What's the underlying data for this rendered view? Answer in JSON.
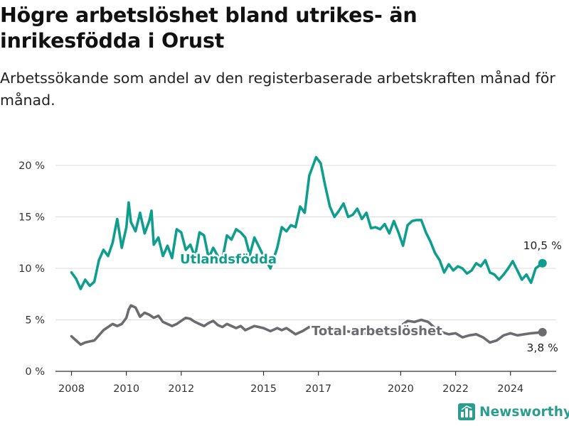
{
  "title": "Högre arbetslöshet bland utrikes- än inrikesfödda i Orust",
  "subtitle": "Arbetssökande som andel av den registerbaserade arbetskraften månad för månad.",
  "brand": {
    "name": "Newsworthy",
    "icon": "bar-chart-logo-icon"
  },
  "colors": {
    "utlandsfodda": "#0f9e8e",
    "total": "#6b6b70",
    "grid": "#dcdcdc",
    "axis": "#333333"
  },
  "chart_data": {
    "type": "line",
    "ylim": [
      0,
      20
    ],
    "yticks": [
      0,
      5,
      10,
      15,
      20
    ],
    "ytick_labels": [
      "0 %",
      "5 %",
      "10 %",
      "15 %",
      "20 %"
    ],
    "xlim": [
      "2007-06",
      "2025-09"
    ],
    "xticks": [
      "2008",
      "2010",
      "2012",
      "2015",
      "2017",
      "2020",
      "2022",
      "2024"
    ],
    "series": [
      {
        "name": "Utlandsfödda",
        "color": "#0f9e8e",
        "end_label": "10,5 %",
        "points": [
          [
            "2008-01",
            9.6
          ],
          [
            "2008-03",
            9.0
          ],
          [
            "2008-05",
            8.0
          ],
          [
            "2008-07",
            8.9
          ],
          [
            "2008-09",
            8.3
          ],
          [
            "2008-11",
            8.7
          ],
          [
            "2009-01",
            10.8
          ],
          [
            "2009-03",
            11.8
          ],
          [
            "2009-05",
            11.2
          ],
          [
            "2009-07",
            12.5
          ],
          [
            "2009-09",
            14.8
          ],
          [
            "2009-11",
            12.0
          ],
          [
            "2010-01",
            14.0
          ],
          [
            "2010-02",
            16.4
          ],
          [
            "2010-03",
            14.5
          ],
          [
            "2010-05",
            13.6
          ],
          [
            "2010-07",
            15.4
          ],
          [
            "2010-09",
            13.4
          ],
          [
            "2010-11",
            14.6
          ],
          [
            "2010-12",
            15.6
          ],
          [
            "2011-01",
            12.3
          ],
          [
            "2011-03",
            13.0
          ],
          [
            "2011-05",
            11.2
          ],
          [
            "2011-07",
            12.2
          ],
          [
            "2011-09",
            11.0
          ],
          [
            "2011-11",
            13.8
          ],
          [
            "2012-01",
            13.5
          ],
          [
            "2012-03",
            11.8
          ],
          [
            "2012-05",
            12.3
          ],
          [
            "2012-07",
            11.1
          ],
          [
            "2012-09",
            13.5
          ],
          [
            "2012-11",
            13.2
          ],
          [
            "2013-01",
            11.0
          ],
          [
            "2013-03",
            12.0
          ],
          [
            "2013-05",
            11.2
          ],
          [
            "2013-07",
            10.9
          ],
          [
            "2013-09",
            13.2
          ],
          [
            "2013-11",
            12.8
          ],
          [
            "2014-01",
            13.8
          ],
          [
            "2014-03",
            13.5
          ],
          [
            "2014-05",
            13.0
          ],
          [
            "2014-07",
            11.3
          ],
          [
            "2014-09",
            13.0
          ],
          [
            "2015-01",
            11.2
          ],
          [
            "2015-04",
            10.0
          ],
          [
            "2015-07",
            12.0
          ],
          [
            "2015-09",
            14.0
          ],
          [
            "2015-11",
            13.6
          ],
          [
            "2016-01",
            14.2
          ],
          [
            "2016-03",
            14.0
          ],
          [
            "2016-05",
            16.0
          ],
          [
            "2016-07",
            15.4
          ],
          [
            "2016-09",
            19.0
          ],
          [
            "2016-12",
            20.8
          ],
          [
            "2017-02",
            20.2
          ],
          [
            "2017-04",
            18.0
          ],
          [
            "2017-06",
            16.0
          ],
          [
            "2017-08",
            15.0
          ],
          [
            "2017-10",
            15.6
          ],
          [
            "2017-12",
            16.3
          ],
          [
            "2018-02",
            15.0
          ],
          [
            "2018-04",
            15.2
          ],
          [
            "2018-06",
            15.8
          ],
          [
            "2018-08",
            14.8
          ],
          [
            "2018-10",
            15.4
          ],
          [
            "2018-12",
            13.9
          ],
          [
            "2019-02",
            14.0
          ],
          [
            "2019-04",
            13.8
          ],
          [
            "2019-06",
            14.3
          ],
          [
            "2019-08",
            13.4
          ],
          [
            "2019-10",
            14.6
          ],
          [
            "2019-12",
            13.5
          ],
          [
            "2020-02",
            12.2
          ],
          [
            "2020-04",
            14.2
          ],
          [
            "2020-06",
            14.6
          ],
          [
            "2020-08",
            14.7
          ],
          [
            "2020-10",
            14.7
          ],
          [
            "2020-12",
            13.5
          ],
          [
            "2021-02",
            12.6
          ],
          [
            "2021-04",
            11.5
          ],
          [
            "2021-06",
            10.8
          ],
          [
            "2021-08",
            9.6
          ],
          [
            "2021-10",
            10.4
          ],
          [
            "2021-12",
            9.8
          ],
          [
            "2022-02",
            10.2
          ],
          [
            "2022-04",
            10.0
          ],
          [
            "2022-06",
            9.5
          ],
          [
            "2022-08",
            9.8
          ],
          [
            "2022-10",
            10.5
          ],
          [
            "2022-12",
            10.2
          ],
          [
            "2023-02",
            10.8
          ],
          [
            "2023-04",
            9.6
          ],
          [
            "2023-06",
            9.4
          ],
          [
            "2023-08",
            8.9
          ],
          [
            "2023-10",
            9.4
          ],
          [
            "2023-12",
            10.0
          ],
          [
            "2024-02",
            10.7
          ],
          [
            "2024-04",
            9.8
          ],
          [
            "2024-06",
            8.9
          ],
          [
            "2024-08",
            9.4
          ],
          [
            "2024-10",
            8.6
          ],
          [
            "2024-12",
            10.0
          ],
          [
            "2025-03",
            10.5
          ]
        ]
      },
      {
        "name": "Total arbetslöshet",
        "color": "#6b6b70",
        "end_label": "3,8 %",
        "points": [
          [
            "2008-01",
            3.4
          ],
          [
            "2008-03",
            3.0
          ],
          [
            "2008-05",
            2.6
          ],
          [
            "2008-07",
            2.8
          ],
          [
            "2008-09",
            2.9
          ],
          [
            "2008-11",
            3.0
          ],
          [
            "2009-01",
            3.5
          ],
          [
            "2009-03",
            4.0
          ],
          [
            "2009-05",
            4.3
          ],
          [
            "2009-07",
            4.6
          ],
          [
            "2009-09",
            4.4
          ],
          [
            "2009-11",
            4.6
          ],
          [
            "2010-01",
            5.2
          ],
          [
            "2010-02",
            6.0
          ],
          [
            "2010-03",
            6.4
          ],
          [
            "2010-05",
            6.2
          ],
          [
            "2010-07",
            5.3
          ],
          [
            "2010-09",
            5.7
          ],
          [
            "2010-11",
            5.5
          ],
          [
            "2011-01",
            5.2
          ],
          [
            "2011-03",
            5.4
          ],
          [
            "2011-05",
            4.8
          ],
          [
            "2011-07",
            4.6
          ],
          [
            "2011-09",
            4.4
          ],
          [
            "2011-11",
            4.6
          ],
          [
            "2012-01",
            4.9
          ],
          [
            "2012-03",
            5.2
          ],
          [
            "2012-05",
            5.1
          ],
          [
            "2012-07",
            4.8
          ],
          [
            "2012-09",
            4.6
          ],
          [
            "2012-11",
            4.4
          ],
          [
            "2013-01",
            4.7
          ],
          [
            "2013-03",
            4.9
          ],
          [
            "2013-05",
            4.5
          ],
          [
            "2013-07",
            4.3
          ],
          [
            "2013-09",
            4.6
          ],
          [
            "2013-11",
            4.4
          ],
          [
            "2014-01",
            4.2
          ],
          [
            "2014-03",
            4.4
          ],
          [
            "2014-05",
            4.0
          ],
          [
            "2014-07",
            4.2
          ],
          [
            "2014-09",
            4.4
          ],
          [
            "2014-11",
            4.3
          ],
          [
            "2015-01",
            4.2
          ],
          [
            "2015-04",
            3.9
          ],
          [
            "2015-07",
            4.2
          ],
          [
            "2015-09",
            4.0
          ],
          [
            "2015-11",
            4.2
          ],
          [
            "2016-01",
            3.9
          ],
          [
            "2016-03",
            3.6
          ],
          [
            "2016-06",
            3.9
          ],
          [
            "2016-09",
            4.3
          ],
          [
            "2016-12",
            4.2
          ],
          [
            "2017-03",
            3.9
          ],
          [
            "2017-06",
            3.7
          ],
          [
            "2017-09",
            3.8
          ],
          [
            "2018-01",
            3.9
          ],
          [
            "2018-04",
            3.8
          ],
          [
            "2018-07",
            3.6
          ],
          [
            "2018-10",
            3.7
          ],
          [
            "2019-01",
            3.9
          ],
          [
            "2019-04",
            3.8
          ],
          [
            "2019-07",
            4.1
          ],
          [
            "2019-10",
            4.0
          ],
          [
            "2020-01",
            4.4
          ],
          [
            "2020-04",
            4.9
          ],
          [
            "2020-07",
            4.8
          ],
          [
            "2020-10",
            5.0
          ],
          [
            "2021-01",
            4.8
          ],
          [
            "2021-04",
            4.2
          ],
          [
            "2021-07",
            3.8
          ],
          [
            "2021-10",
            3.6
          ],
          [
            "2022-01",
            3.7
          ],
          [
            "2022-04",
            3.3
          ],
          [
            "2022-07",
            3.5
          ],
          [
            "2022-10",
            3.6
          ],
          [
            "2023-01",
            3.3
          ],
          [
            "2023-04",
            2.8
          ],
          [
            "2023-07",
            3.0
          ],
          [
            "2023-10",
            3.5
          ],
          [
            "2024-01",
            3.7
          ],
          [
            "2024-04",
            3.5
          ],
          [
            "2024-07",
            3.6
          ],
          [
            "2024-10",
            3.7
          ],
          [
            "2025-03",
            3.8
          ]
        ]
      }
    ],
    "annotations": [
      {
        "text": "Utlandsfödda",
        "series": 0
      },
      {
        "text": "Total arbetslöshet",
        "series": 1
      }
    ]
  }
}
